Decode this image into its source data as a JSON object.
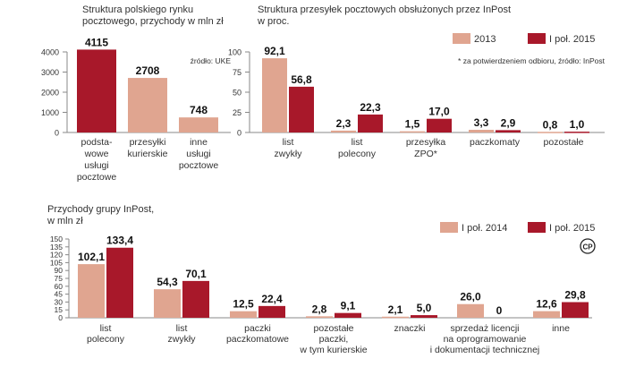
{
  "colors": {
    "red": "#a8182a",
    "salmon": "#e0a590",
    "axis": "#888888",
    "text": "#333333",
    "label": "#111111"
  },
  "chart_data": [
    {
      "id": "chart1",
      "type": "bar",
      "title": [
        "Struktura polskiego rynku",
        "pocztowego, przychody w mln zł"
      ],
      "note": "źródło: UKE",
      "ylim": [
        0,
        4000
      ],
      "yticks": [
        "0",
        "1000",
        "2000",
        "3000",
        "4000"
      ],
      "categories": [
        [
          "podsta-",
          "wowe",
          "usługi",
          "pocztowe"
        ],
        [
          "przesyłki",
          "kurierskie"
        ],
        [
          "inne",
          "usługi",
          "pocztowe"
        ]
      ],
      "values": [
        4115,
        2708,
        748
      ],
      "value_labels": [
        "4115",
        "2708",
        "748"
      ],
      "bar_colors": [
        "red",
        "salmon",
        "salmon"
      ]
    },
    {
      "id": "chart2",
      "type": "bar",
      "title": [
        "Struktura przesyłek pocztowych obsłużonych przez InPost",
        "w proc."
      ],
      "note": "* za potwierdzeniem odbioru, źródło: InPost",
      "ylim": [
        0,
        100
      ],
      "yticks": [
        "0",
        "25",
        "50",
        "75",
        "100"
      ],
      "legend": [
        "2013",
        "I poł. 2015"
      ],
      "categories": [
        [
          "list",
          "zwykły"
        ],
        [
          "list",
          "polecony"
        ],
        [
          "przesyłka",
          "ZPO*"
        ],
        [
          "paczkomaty"
        ],
        [
          "pozostałe"
        ]
      ],
      "series": [
        {
          "name": "2013",
          "values": [
            92.1,
            2.3,
            1.5,
            3.3,
            0.8
          ],
          "labels": [
            "92,1",
            "2,3",
            "1,5",
            "3,3",
            "0,8"
          ]
        },
        {
          "name": "I poł. 2015",
          "values": [
            56.8,
            22.3,
            17.0,
            2.9,
            1.0
          ],
          "labels": [
            "56,8",
            "22,3",
            "17,0",
            "2,9",
            "1,0"
          ]
        }
      ]
    },
    {
      "id": "chart3",
      "type": "bar",
      "title": [
        "Przychody grupy InPost,",
        "w mln zł"
      ],
      "ylim": [
        0,
        150
      ],
      "yticks": [
        "0",
        "15",
        "30",
        "45",
        "60",
        "75",
        "90",
        "105",
        "120",
        "135",
        "150"
      ],
      "legend": [
        "I poł. 2014",
        "I poł. 2015"
      ],
      "logo": "CP",
      "categories": [
        [
          "list",
          "polecony"
        ],
        [
          "list",
          "zwykły"
        ],
        [
          "paczki",
          "paczkomatowe"
        ],
        [
          "pozostałe",
          "paczki,",
          "w tym kurierskie"
        ],
        [
          "znaczki"
        ],
        [
          "sprzedaż licencji",
          "na oprogramowanie",
          "i dokumentacji technicznej"
        ],
        [
          "inne"
        ]
      ],
      "series": [
        {
          "name": "I poł. 2014",
          "values": [
            102.1,
            54.3,
            12.5,
            2.8,
            2.1,
            26.0,
            12.6
          ],
          "labels": [
            "102,1",
            "54,3",
            "12,5",
            "2,8",
            "2,1",
            "26,0",
            "12,6"
          ]
        },
        {
          "name": "I poł. 2015",
          "values": [
            133.4,
            70.1,
            22.4,
            9.1,
            5.0,
            0,
            29.8
          ],
          "labels": [
            "133,4",
            "70,1",
            "22,4",
            "9,1",
            "5,0",
            "0",
            "29,8"
          ]
        }
      ]
    }
  ]
}
